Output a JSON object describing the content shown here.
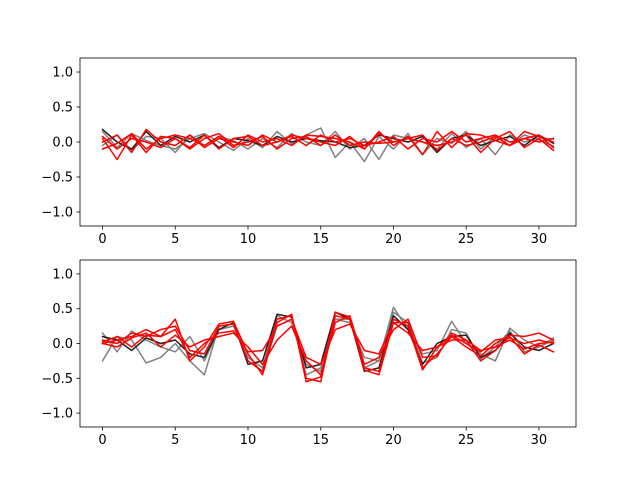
{
  "chart_data": [
    {
      "type": "line",
      "title": "",
      "xlabel": "",
      "ylabel": "",
      "xlim": [
        -1.55,
        32.55
      ],
      "ylim": [
        -1.2,
        1.2
      ],
      "xticks": [
        0,
        5,
        10,
        15,
        20,
        25,
        30
      ],
      "xtick_labels": [
        "0",
        "5",
        "10",
        "15",
        "20",
        "25",
        "30"
      ],
      "yticks": [
        1.0,
        0.5,
        0.0,
        -0.5,
        -1.0
      ],
      "ytick_labels": [
        "1.0",
        "0.5",
        "0.0",
        "−0.5",
        "−1.0"
      ],
      "grid": false,
      "legend": "none",
      "x": [
        0,
        1,
        2,
        3,
        4,
        5,
        6,
        7,
        8,
        9,
        10,
        11,
        12,
        13,
        14,
        15,
        16,
        17,
        18,
        19,
        20,
        21,
        22,
        23,
        24,
        25,
        26,
        27,
        28,
        29,
        30,
        31
      ],
      "series": [
        {
          "color": "#808080",
          "values": [
            0.15,
            -0.08,
            0.12,
            0.02,
            -0.05,
            -0.1,
            0.05,
            0.12,
            0.0,
            -0.12,
            0.05,
            -0.08,
            0.15,
            -0.03,
            0.1,
            0.2,
            -0.22,
            0.0,
            -0.28,
            0.08,
            -0.1,
            0.12,
            -0.18,
            0.05,
            -0.02,
            0.15,
            -0.1,
            0.08,
            -0.05,
            0.1,
            0.03,
            -0.06
          ]
        },
        {
          "color": "#808080",
          "values": [
            -0.05,
            0.1,
            -0.12,
            0.08,
            0.05,
            -0.15,
            0.1,
            -0.05,
            0.08,
            0.02,
            -0.1,
            0.05,
            -0.08,
            0.12,
            0.0,
            -0.05,
            0.15,
            -0.1,
            0.05,
            -0.25,
            0.1,
            0.05,
            0.0,
            -0.1,
            0.12,
            -0.08,
            0.05,
            -0.18,
            0.1,
            0.0,
            0.06,
            0.04
          ]
        },
        {
          "color": "#202020",
          "values": [
            0.18,
            0.0,
            -0.1,
            0.15,
            -0.05,
            0.08,
            0.0,
            0.1,
            -0.08,
            0.05,
            0.02,
            -0.05,
            0.08,
            0.0,
            0.05,
            0.02,
            0.0,
            -0.08,
            -0.05,
            0.1,
            0.05,
            0.0,
            0.08,
            -0.15,
            0.05,
            0.1,
            -0.05,
            0.02,
            0.08,
            -0.05,
            0.1,
            -0.02
          ]
        },
        {
          "color": "#ff0000",
          "values": [
            0.05,
            -0.25,
            0.1,
            -0.15,
            0.08,
            0.05,
            -0.08,
            0.1,
            -0.1,
            0.05,
            0.08,
            -0.05,
            0.0,
            0.1,
            0.05,
            0.0,
            -0.05,
            0.08,
            -0.1,
            0.12,
            0.0,
            0.05,
            0.0,
            -0.05,
            0.0,
            0.1,
            -0.15,
            0.05,
            0.15,
            -0.08,
            0.05,
            -0.12
          ]
        },
        {
          "color": "#ff0000",
          "values": [
            -0.1,
            -0.02,
            0.12,
            -0.1,
            0.05,
            0.1,
            0.05,
            -0.05,
            0.08,
            -0.08,
            0.1,
            0.0,
            0.05,
            -0.05,
            0.1,
            0.08,
            0.05,
            0.0,
            -0.1,
            0.15,
            -0.05,
            0.08,
            -0.18,
            0.15,
            -0.08,
            0.12,
            0.1,
            0.02,
            -0.05,
            0.15,
            0.08,
            0.0
          ]
        },
        {
          "color": "#ff0000",
          "values": [
            0.0,
            0.1,
            -0.15,
            0.18,
            0.0,
            -0.05,
            0.1,
            -0.08,
            0.05,
            0.0,
            -0.05,
            0.1,
            0.0,
            0.08,
            -0.05,
            0.1,
            0.0,
            0.05,
            -0.05,
            0.0,
            0.08,
            -0.1,
            0.05,
            0.0,
            0.15,
            0.0,
            0.05,
            0.1,
            0.0,
            0.05,
            0.0,
            0.05
          ]
        },
        {
          "color": "#ff0000",
          "values": [
            0.08,
            -0.1,
            0.05,
            0.0,
            -0.08,
            0.05,
            -0.1,
            0.05,
            0.12,
            -0.05,
            0.0,
            0.08,
            -0.1,
            0.05,
            0.08,
            -0.05,
            0.1,
            -0.05,
            0.0,
            -0.02,
            0.0,
            0.05,
            0.1,
            -0.12,
            0.05,
            -0.05,
            0.0,
            0.08,
            -0.05,
            0.05,
            0.1,
            -0.08
          ]
        }
      ]
    },
    {
      "type": "line",
      "title": "",
      "xlabel": "",
      "ylabel": "",
      "xlim": [
        -1.55,
        32.55
      ],
      "ylim": [
        -1.2,
        1.2
      ],
      "xticks": [
        0,
        5,
        10,
        15,
        20,
        25,
        30
      ],
      "xtick_labels": [
        "0",
        "5",
        "10",
        "15",
        "20",
        "25",
        "30"
      ],
      "yticks": [
        1.0,
        0.5,
        0.0,
        -0.5,
        -1.0
      ],
      "ytick_labels": [
        "1.0",
        "0.5",
        "0.0",
        "−0.5",
        "−1.0"
      ],
      "grid": false,
      "legend": "none",
      "x": [
        0,
        1,
        2,
        3,
        4,
        5,
        6,
        7,
        8,
        9,
        10,
        11,
        12,
        13,
        14,
        15,
        16,
        17,
        18,
        19,
        20,
        21,
        22,
        23,
        24,
        25,
        26,
        27,
        28,
        29,
        30,
        31
      ],
      "series": [
        {
          "color": "#808080",
          "values": [
            -0.25,
            0.1,
            0.05,
            -0.28,
            -0.2,
            0.0,
            -0.25,
            -0.45,
            0.25,
            0.28,
            -0.25,
            -0.4,
            0.25,
            0.35,
            -0.45,
            -0.35,
            0.35,
            0.3,
            -0.2,
            -0.25,
            0.52,
            0.2,
            -0.15,
            -0.1,
            0.32,
            0.0,
            -0.15,
            -0.25,
            0.22,
            0.05,
            -0.05,
            0.08
          ]
        },
        {
          "color": "#808080",
          "values": [
            0.15,
            -0.12,
            0.18,
            0.05,
            -0.05,
            -0.12,
            0.1,
            -0.25,
            0.2,
            0.25,
            -0.2,
            -0.35,
            0.4,
            0.3,
            -0.3,
            -0.4,
            0.35,
            0.35,
            -0.35,
            -0.25,
            0.45,
            0.3,
            -0.28,
            -0.2,
            0.2,
            0.15,
            -0.22,
            -0.05,
            0.18,
            -0.12,
            -0.05,
            0.05
          ]
        },
        {
          "color": "#202020",
          "values": [
            0.1,
            0.05,
            -0.1,
            0.08,
            0.0,
            0.05,
            -0.15,
            -0.2,
            0.2,
            0.3,
            -0.3,
            -0.25,
            0.42,
            0.38,
            -0.35,
            -0.3,
            0.45,
            0.35,
            -0.4,
            -0.35,
            0.4,
            0.2,
            -0.3,
            0.0,
            0.1,
            0.12,
            -0.2,
            -0.1,
            0.15,
            -0.05,
            -0.1,
            0.0
          ]
        },
        {
          "color": "#ff0000",
          "values": [
            0.0,
            0.05,
            0.1,
            0.2,
            0.1,
            0.35,
            -0.25,
            -0.05,
            0.28,
            0.32,
            -0.15,
            -0.45,
            0.3,
            0.42,
            -0.55,
            -0.48,
            0.45,
            0.38,
            -0.38,
            -0.45,
            0.3,
            0.3,
            -0.35,
            -0.15,
            0.1,
            -0.05,
            -0.18,
            0.0,
            0.12,
            0.1,
            0.15,
            0.05
          ]
        },
        {
          "color": "#ff0000",
          "values": [
            0.05,
            0.0,
            0.15,
            0.1,
            0.2,
            0.25,
            -0.1,
            -0.15,
            0.25,
            0.28,
            -0.25,
            -0.4,
            0.35,
            0.4,
            -0.5,
            -0.55,
            0.4,
            0.35,
            -0.35,
            -0.4,
            0.35,
            0.25,
            -0.38,
            -0.05,
            0.05,
            0.05,
            -0.25,
            -0.1,
            0.1,
            -0.15,
            -0.02,
            -0.12
          ]
        },
        {
          "color": "#ff0000",
          "values": [
            0.0,
            -0.05,
            0.08,
            0.15,
            -0.05,
            0.12,
            -0.05,
            0.05,
            0.1,
            0.15,
            -0.05,
            -0.3,
            0.05,
            0.25,
            -0.25,
            -0.45,
            0.3,
            0.4,
            -0.3,
            -0.2,
            0.2,
            0.35,
            -0.2,
            -0.18,
            0.15,
            0.05,
            -0.1,
            -0.05,
            0.05,
            -0.08,
            0.0,
            0.02
          ]
        },
        {
          "color": "#ff0000",
          "values": [
            0.02,
            0.1,
            -0.05,
            0.12,
            0.1,
            0.2,
            -0.2,
            0.0,
            0.15,
            0.18,
            -0.12,
            -0.1,
            0.25,
            0.35,
            -0.2,
            -0.3,
            0.2,
            0.28,
            -0.1,
            -0.15,
            0.3,
            0.15,
            -0.1,
            -0.05,
            0.12,
            0.0,
            -0.12,
            0.05,
            0.08,
            0.0,
            0.05,
            0.0
          ]
        }
      ]
    }
  ]
}
